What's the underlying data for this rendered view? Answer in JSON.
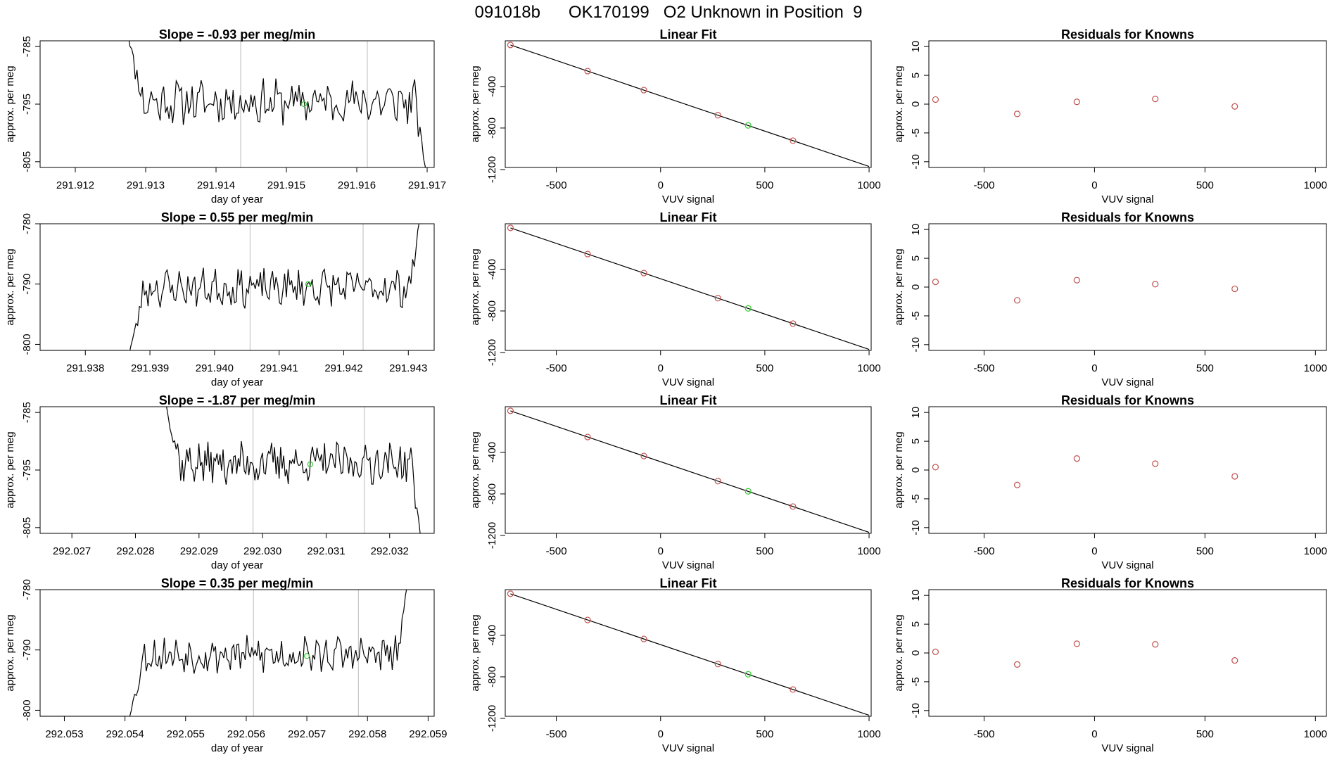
{
  "page_title": "091018b      OK170199   O2 Unknown in Position  9",
  "colors": {
    "trace": "#000000",
    "known_point": "#c0504d",
    "unknown_point": "#33cc33",
    "vline": "#bbbbbb"
  },
  "chart_data": [
    {
      "type": "line",
      "title": "Slope =  -0.93  per meg/min",
      "xlabel": "day of year",
      "ylabel": "approx. per meg",
      "xlim": [
        291.9115,
        291.9171
      ],
      "ylim": [
        -806,
        -784
      ],
      "xticks": [
        291.912,
        291.913,
        291.914,
        291.915,
        291.916,
        291.917
      ],
      "xtick_labels": [
        "291.912",
        "291.913",
        "291.914",
        "291.915",
        "291.916",
        "291.917"
      ],
      "yticks": [
        -785,
        -795,
        -805
      ],
      "ytick_labels": [
        "-785",
        "-795",
        "-805"
      ],
      "vlines": [
        291.91435,
        291.91615
      ],
      "trend": {
        "start": 291.9127,
        "end": 291.917,
        "base": -794.6,
        "begin_value": -780,
        "end_value": -808,
        "amp": 3.2,
        "seed": 11
      },
      "unknown_point": {
        "x": 291.91525,
        "y": -795
      }
    },
    {
      "type": "scatter",
      "title": "Linear Fit",
      "xlabel": "VUV signal",
      "ylabel": "approx. per meg",
      "xlim": [
        -745,
        1010
      ],
      "ylim": [
        -1180,
        40
      ],
      "xticks": [
        -500,
        0,
        500,
        1000
      ],
      "xtick_labels": [
        "-500",
        "0",
        "500",
        "1000"
      ],
      "yticks": [
        -400,
        -800,
        -1200
      ],
      "ytick_labels": [
        "-400",
        "-800",
        "-1200"
      ],
      "fit_line": {
        "x": [
          -720,
          1000
        ],
        "y": [
          0,
          -1170
        ]
      },
      "known_points": {
        "x": [
          -720,
          -350,
          -80,
          275,
          635
        ],
        "y": [
          0,
          -252,
          -435,
          -677,
          -922
        ]
      },
      "unknown_point": {
        "x": 420,
        "y": -775
      }
    },
    {
      "type": "scatter",
      "title": "Residuals for Knowns",
      "xlabel": "VUV signal",
      "ylabel": "approx. per meg",
      "xlim": [
        -750,
        1050
      ],
      "ylim": [
        -11,
        11
      ],
      "xticks": [
        -500,
        0,
        500,
        1000
      ],
      "xtick_labels": [
        "-500",
        "0",
        "500",
        "1000"
      ],
      "yticks": [
        10,
        5,
        0,
        -5,
        -10
      ],
      "ytick_labels": [
        "10",
        "5",
        "0",
        "-5",
        "-10"
      ],
      "known_points": {
        "x": [
          -720,
          -350,
          -80,
          275,
          635
        ],
        "y": [
          0.8,
          -1.7,
          0.4,
          0.9,
          -0.4
        ]
      }
    },
    {
      "type": "line",
      "title": "Slope =  0.55  per meg/min",
      "xlabel": "day of year",
      "ylabel": "approx. per meg",
      "xlim": [
        291.9373,
        291.9434
      ],
      "ylim": [
        -801,
        -780
      ],
      "xticks": [
        291.938,
        291.939,
        291.94,
        291.941,
        291.942,
        291.943
      ],
      "xtick_labels": [
        "291.938",
        "291.939",
        "291.940",
        "291.941",
        "291.942",
        "291.943"
      ],
      "yticks": [
        -780,
        -790,
        -800
      ],
      "ytick_labels": [
        "-780",
        "-790",
        "-800"
      ],
      "vlines": [
        291.94055,
        291.9423
      ],
      "flat_before": {
        "from": 291.9373,
        "to": 291.93865,
        "value": -801
      },
      "trend": {
        "start": 291.93865,
        "end": 291.9432,
        "base": -790.6,
        "begin_value": -803,
        "end_value": -778,
        "amp": 2.6,
        "seed": 23
      },
      "unknown_point": {
        "x": 291.94145,
        "y": -790
      }
    },
    {
      "type": "scatter",
      "title": "Linear Fit",
      "xlabel": "VUV signal",
      "ylabel": "approx. per meg",
      "xlim": [
        -745,
        1010
      ],
      "ylim": [
        -1180,
        40
      ],
      "xticks": [
        -500,
        0,
        500,
        1000
      ],
      "xtick_labels": [
        "-500",
        "0",
        "500",
        "1000"
      ],
      "yticks": [
        -400,
        -800,
        -1200
      ],
      "ytick_labels": [
        "-400",
        "-800",
        "-1200"
      ],
      "fit_line": {
        "x": [
          -720,
          1000
        ],
        "y": [
          0,
          -1170
        ]
      },
      "known_points": {
        "x": [
          -720,
          -350,
          -80,
          275,
          635
        ],
        "y": [
          0,
          -252,
          -435,
          -677,
          -922
        ]
      },
      "unknown_point": {
        "x": 420,
        "y": -775
      }
    },
    {
      "type": "scatter",
      "title": "Residuals for Knowns",
      "xlabel": "VUV signal",
      "ylabel": "approx. per meg",
      "xlim": [
        -750,
        1050
      ],
      "ylim": [
        -11,
        11
      ],
      "xticks": [
        -500,
        0,
        500,
        1000
      ],
      "xtick_labels": [
        "-500",
        "0",
        "500",
        "1000"
      ],
      "yticks": [
        10,
        5,
        0,
        -5,
        -10
      ],
      "ytick_labels": [
        "10",
        "5",
        "0",
        "-5",
        "-10"
      ],
      "known_points": {
        "x": [
          -720,
          -350,
          -80,
          275,
          635
        ],
        "y": [
          0.9,
          -2.3,
          1.2,
          0.5,
          -0.3
        ]
      }
    },
    {
      "type": "line",
      "title": "Slope =  -1.87  per meg/min",
      "xlabel": "day of year",
      "ylabel": "approx. per meg",
      "xlim": [
        292.0265,
        292.0327
      ],
      "ylim": [
        -806,
        -784
      ],
      "xticks": [
        292.027,
        292.028,
        292.029,
        292.03,
        292.031,
        292.032
      ],
      "xtick_labels": [
        "292.027",
        "292.028",
        "292.029",
        "292.030",
        "292.031",
        "292.032"
      ],
      "yticks": [
        -785,
        -795,
        -805
      ],
      "ytick_labels": [
        "-785",
        "-795",
        "-805"
      ],
      "vlines": [
        292.02985,
        292.0316
      ],
      "trend": {
        "start": 292.02845,
        "end": 292.0325,
        "base": -793.8,
        "begin_value": -782,
        "end_value": -808,
        "amp": 3.0,
        "seed": 37
      },
      "unknown_point": {
        "x": 292.03075,
        "y": -794
      }
    },
    {
      "type": "scatter",
      "title": "Linear Fit",
      "xlabel": "VUV signal",
      "ylabel": "approx. per meg",
      "xlim": [
        -745,
        1010
      ],
      "ylim": [
        -1180,
        40
      ],
      "xticks": [
        -500,
        0,
        500,
        1000
      ],
      "xtick_labels": [
        "-500",
        "0",
        "500",
        "1000"
      ],
      "yticks": [
        -400,
        -800,
        -1200
      ],
      "ytick_labels": [
        "-400",
        "-800",
        "-1200"
      ],
      "fit_line": {
        "x": [
          -720,
          1000
        ],
        "y": [
          0,
          -1170
        ]
      },
      "known_points": {
        "x": [
          -720,
          -350,
          -80,
          275,
          635
        ],
        "y": [
          0,
          -252,
          -435,
          -677,
          -922
        ]
      },
      "unknown_point": {
        "x": 420,
        "y": -775
      }
    },
    {
      "type": "scatter",
      "title": "Residuals for Knowns",
      "xlabel": "VUV signal",
      "ylabel": "approx. per meg",
      "xlim": [
        -750,
        1050
      ],
      "ylim": [
        -11,
        11
      ],
      "xticks": [
        -500,
        0,
        500,
        1000
      ],
      "xtick_labels": [
        "-500",
        "0",
        "500",
        "1000"
      ],
      "yticks": [
        10,
        5,
        0,
        -5,
        -10
      ],
      "ytick_labels": [
        "10",
        "5",
        "0",
        "-5",
        "-10"
      ],
      "known_points": {
        "x": [
          -720,
          -350,
          -80,
          275,
          635
        ],
        "y": [
          0.5,
          -2.6,
          2.0,
          1.1,
          -1.1
        ]
      }
    },
    {
      "type": "line",
      "title": "Slope =  0.35  per meg/min",
      "xlabel": "day of year",
      "ylabel": "approx. per meg",
      "xlim": [
        292.0526,
        292.0591
      ],
      "ylim": [
        -801,
        -780
      ],
      "xticks": [
        292.053,
        292.054,
        292.055,
        292.056,
        292.057,
        292.058,
        292.059
      ],
      "xtick_labels": [
        "292.053",
        "292.054",
        "292.055",
        "292.056",
        "292.057",
        "292.058",
        "292.059"
      ],
      "yticks": [
        -780,
        -790,
        -800
      ],
      "ytick_labels": [
        "-780",
        "-790",
        "-800"
      ],
      "vlines": [
        292.05612,
        292.05785
      ],
      "flat_before": {
        "from": 292.0526,
        "to": 292.05405,
        "value": -801
      },
      "trend": {
        "start": 292.05405,
        "end": 292.05868,
        "base": -790.8,
        "begin_value": -802,
        "end_value": -778,
        "amp": 2.5,
        "seed": 53
      },
      "unknown_point": {
        "x": 292.057,
        "y": -791
      }
    },
    {
      "type": "scatter",
      "title": "Linear Fit",
      "xlabel": "VUV signal",
      "ylabel": "approx. per meg",
      "xlim": [
        -745,
        1010
      ],
      "ylim": [
        -1180,
        40
      ],
      "xticks": [
        -500,
        0,
        500,
        1000
      ],
      "xtick_labels": [
        "-500",
        "0",
        "500",
        "1000"
      ],
      "yticks": [
        -400,
        -800,
        -1200
      ],
      "ytick_labels": [
        "-400",
        "-800",
        "-1200"
      ],
      "fit_line": {
        "x": [
          -720,
          1000
        ],
        "y": [
          0,
          -1170
        ]
      },
      "known_points": {
        "x": [
          -720,
          -350,
          -80,
          275,
          635
        ],
        "y": [
          0,
          -252,
          -435,
          -677,
          -922
        ]
      },
      "unknown_point": {
        "x": 420,
        "y": -775
      }
    },
    {
      "type": "scatter",
      "title": "Residuals for Knowns",
      "xlabel": "VUV signal",
      "ylabel": "approx. per meg",
      "xlim": [
        -750,
        1050
      ],
      "ylim": [
        -11,
        11
      ],
      "xticks": [
        -500,
        0,
        500,
        1000
      ],
      "xtick_labels": [
        "-500",
        "0",
        "500",
        "1000"
      ],
      "yticks": [
        10,
        5,
        0,
        -5,
        -10
      ],
      "ytick_labels": [
        "10",
        "5",
        "0",
        "-5",
        "-10"
      ],
      "known_points": {
        "x": [
          -720,
          -350,
          -80,
          275,
          635
        ],
        "y": [
          0.2,
          -2.0,
          1.6,
          1.5,
          -1.3
        ]
      }
    }
  ]
}
